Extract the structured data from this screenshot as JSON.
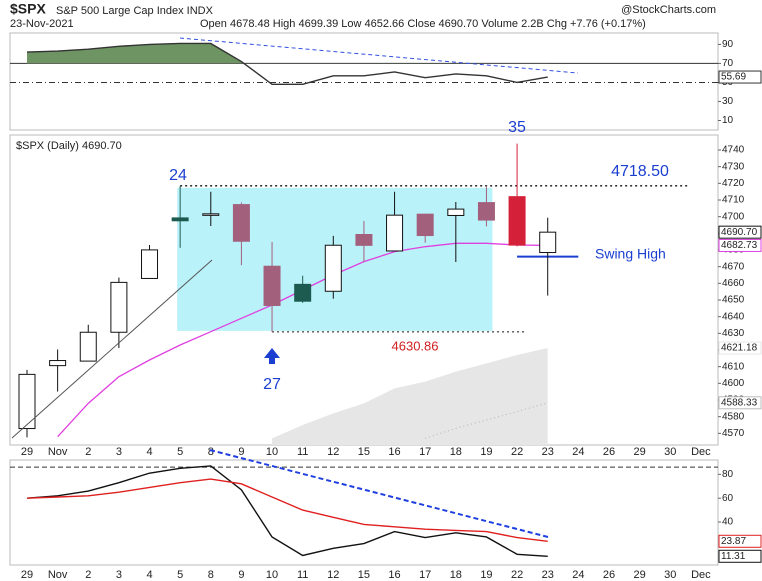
{
  "header": {
    "symbol": "$SPX",
    "name": "S&P 500 Large Cap Index INDX",
    "date": "23-Nov-2021",
    "quote": "Open 4678.48 High 4699.39 Low 4652.66 Close 4690.70 Volume 2.2B Chg +7.76 (+0.17%)",
    "source": "@StockCharts.com"
  },
  "chart_data": [
    {
      "type": "line",
      "fill_above": 70,
      "fill_color": "#6e9463",
      "series": [
        {
          "color": "#333333",
          "values": [
            82,
            83,
            85,
            88,
            90,
            91,
            91,
            72,
            48,
            48,
            57,
            57,
            61,
            55,
            59,
            57,
            50,
            55.69,
            null,
            null,
            null,
            null,
            null
          ],
          "value_labels": [
            null,
            null,
            null,
            null,
            null,
            null,
            null,
            null,
            null,
            null,
            null,
            null,
            null,
            null,
            null,
            null,
            null,
            "55.69",
            null,
            null,
            null,
            null,
            null
          ]
        }
      ],
      "ylim": [
        0,
        102
      ],
      "yticks": [
        90,
        70,
        50,
        30,
        10
      ],
      "reference_lines": [
        {
          "value": 70,
          "style": "solid"
        },
        {
          "value": 50,
          "style": "dashdot"
        }
      ]
    },
    {
      "type": "candlestick",
      "title": "$SPX (Daily) 4690.70",
      "categories": [
        "29",
        "Nov",
        "2",
        "3",
        "4",
        "5",
        "8",
        "9",
        "10",
        "11",
        "12",
        "15",
        "16",
        "17",
        "18",
        "19",
        "22",
        "23",
        "24",
        "26",
        "29",
        "30",
        "Dec"
      ],
      "open": [
        4572.87,
        4610.62,
        4613.34,
        4630.65,
        4662.93,
        4699.26,
        4701.48,
        4707.25,
        4670.26,
        4659.39,
        4655.24,
        4689.3,
        4679.42,
        4701.5,
        4700.72,
        4708.44,
        4712.0,
        4678.48,
        null,
        null,
        null,
        null,
        null
      ],
      "high": [
        4608.08,
        4620.34,
        4635.15,
        4663.46,
        4683.0,
        4718.5,
        4714.92,
        4708.53,
        4684.85,
        4664.55,
        4688.47,
        4697.42,
        4714.95,
        4701.5,
        4708.8,
        4717.75,
        4743.83,
        4699.39,
        null,
        null,
        null,
        null,
        null
      ],
      "low": [
        4567.59,
        4595.06,
        4613.34,
        4621.19,
        4662.59,
        4681.32,
        4694.39,
        4670.87,
        4630.86,
        4648.31,
        4650.77,
        4672.86,
        4679.42,
        4684.41,
        4672.78,
        4694.22,
        4682.17,
        4652.66,
        null,
        null,
        null,
        null,
        null
      ],
      "close": [
        4605.38,
        4613.67,
        4630.65,
        4660.57,
        4680.06,
        4697.53,
        4701.7,
        4685.25,
        4646.71,
        4649.27,
        4682.85,
        4682.8,
        4700.9,
        4688.67,
        4704.54,
        4697.96,
        4682.94,
        4690.7,
        null,
        null,
        null,
        null,
        null
      ],
      "close_labels": [
        null,
        null,
        null,
        null,
        null,
        null,
        null,
        null,
        null,
        null,
        null,
        null,
        null,
        null,
        null,
        null,
        null,
        "4690.70",
        null,
        null,
        null,
        null,
        null
      ],
      "colors": [
        "#ffffff",
        "#ffffff",
        "#ffffff",
        "#ffffff",
        "#ffffff",
        "#1d5b50",
        "#ffffff",
        "#a3607c",
        "#a3607c",
        "#1d5b50",
        "#ffffff",
        "#a3607c",
        "#ffffff",
        "#a3607c",
        "#ffffff",
        "#a3607c",
        "#d42038",
        "#ffffff",
        null,
        null,
        null,
        null,
        null
      ],
      "series": [
        {
          "color": "#e040e0",
          "style": "line",
          "values": [
            null,
            4568,
            4588,
            4604,
            4614,
            4623,
            4631,
            4639,
            4647,
            4656,
            4665,
            4673,
            4679,
            4682,
            4684,
            4684,
            4683,
            4682.73,
            null,
            null,
            null,
            null,
            null
          ],
          "value_labels": [
            null,
            null,
            null,
            null,
            null,
            null,
            null,
            null,
            null,
            null,
            null,
            null,
            null,
            null,
            null,
            null,
            null,
            "4682.73",
            null,
            null,
            null,
            null,
            null
          ]
        },
        {
          "color": "#e6e6e6",
          "style": "area",
          "values": [
            null,
            null,
            null,
            null,
            null,
            null,
            null,
            null,
            4567,
            4575,
            4582,
            4588,
            4597,
            4601,
            4607,
            4612,
            4617,
            4621.18,
            null,
            null,
            null,
            null,
            null
          ],
          "value_labels": [
            null,
            null,
            null,
            null,
            null,
            null,
            null,
            null,
            null,
            null,
            null,
            null,
            null,
            null,
            null,
            null,
            null,
            "4621.18",
            null,
            null,
            null,
            null,
            null
          ]
        },
        {
          "color": "#bbbbbb",
          "style": "dotted",
          "values": [
            null,
            null,
            null,
            null,
            null,
            null,
            null,
            null,
            null,
            null,
            null,
            null,
            null,
            4567,
            4573,
            4578,
            4583,
            4588.33,
            null,
            null,
            null,
            null,
            null
          ],
          "value_labels": [
            null,
            null,
            null,
            null,
            null,
            null,
            null,
            null,
            null,
            null,
            null,
            null,
            null,
            null,
            null,
            null,
            null,
            "4588.33",
            null,
            null,
            null,
            null,
            null
          ]
        }
      ],
      "ylim": [
        4563,
        4749
      ],
      "yticks": [
        4740,
        4730,
        4720,
        4710,
        4700,
        4690,
        4680,
        4670,
        4660,
        4650,
        4640,
        4630,
        4620,
        4610,
        4600,
        4590,
        4580,
        4570
      ],
      "levels": [
        {
          "value": 4718.5,
          "label": "4718.50",
          "color": "#1a3fd0"
        },
        {
          "value": 4630.86,
          "label": "4630.86",
          "color": "#d02020"
        },
        {
          "value": 4676,
          "label": "Swing High",
          "color": "#1a3fd0"
        }
      ],
      "annotations": [
        "24",
        "35",
        "27"
      ]
    },
    {
      "type": "line",
      "categories": [
        "29",
        "Nov",
        "2",
        "3",
        "4",
        "5",
        "8",
        "9",
        "10",
        "11",
        "12",
        "15",
        "16",
        "17",
        "18",
        "19",
        "22",
        "23",
        "24",
        "26",
        "29",
        "30",
        "Dec"
      ],
      "series": [
        {
          "color": "#111111",
          "values": [
            60,
            62,
            66,
            73,
            81,
            85,
            87,
            67,
            27.5,
            12,
            18,
            22,
            32,
            27,
            31,
            27.5,
            13,
            11.31,
            null,
            null,
            null,
            null,
            null
          ],
          "value_labels": [
            null,
            null,
            null,
            null,
            null,
            null,
            null,
            null,
            null,
            null,
            null,
            null,
            null,
            null,
            null,
            null,
            null,
            "11.31",
            null,
            null,
            null,
            null,
            null
          ]
        },
        {
          "color": "#e02020",
          "values": [
            60,
            61,
            62,
            65,
            69,
            73,
            76,
            72,
            61,
            50,
            44,
            38,
            36,
            34,
            33,
            32,
            27,
            23.87,
            null,
            null,
            null,
            null,
            null
          ],
          "value_labels": [
            null,
            null,
            null,
            null,
            null,
            null,
            null,
            null,
            null,
            null,
            null,
            null,
            null,
            null,
            null,
            null,
            null,
            "23.87",
            null,
            null,
            null,
            null,
            null
          ]
        }
      ],
      "ylim": [
        4,
        92
      ],
      "yticks": [
        80,
        60,
        40
      ],
      "reference_lines": [
        {
          "value": 86,
          "style": "dashed"
        }
      ]
    }
  ]
}
